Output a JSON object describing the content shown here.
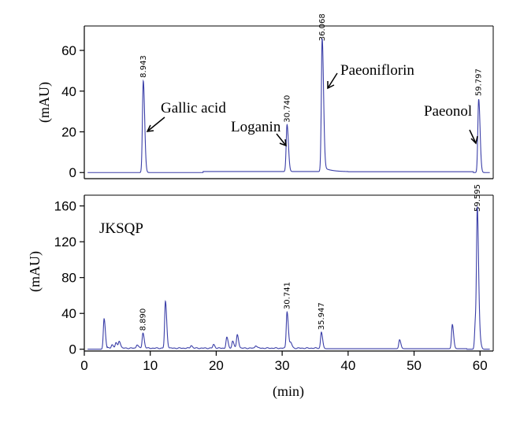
{
  "chart_data": [
    {
      "type": "line",
      "panel": "standards",
      "ylabel": "(mAU)",
      "xlim": [
        0,
        62
      ],
      "ylim": [
        -3,
        72
      ],
      "yticks": [
        0,
        20,
        40,
        60
      ],
      "baseline": 0,
      "peaks": [
        {
          "rt": 8.943,
          "height": 45,
          "label": "8.943",
          "compound": "Gallic acid"
        },
        {
          "rt": 30.74,
          "height": 23,
          "label": "30.740",
          "compound": "Loganin"
        },
        {
          "rt": 36.068,
          "height": 63,
          "label": "36.068",
          "compound": "Paeoniflorin"
        },
        {
          "rt": 59.797,
          "height": 36,
          "label": "59.797",
          "compound": "Paeonol"
        }
      ],
      "annotations": [
        {
          "text": "Gallic acid",
          "rt": 8.943
        },
        {
          "text": "Loganin",
          "rt": 30.74
        },
        {
          "text": "Paeoniflorin",
          "rt": 36.068
        },
        {
          "text": "Paeonol",
          "rt": 59.797
        }
      ]
    },
    {
      "type": "line",
      "panel": "sample",
      "sample_label": "JKSQP",
      "ylabel": "(mAU)",
      "xlabel": "(min)",
      "xlim": [
        0,
        62
      ],
      "ylim": [
        -2,
        172
      ],
      "yticks": [
        0,
        40,
        80,
        120,
        160
      ],
      "xticks": [
        0,
        10,
        20,
        30,
        40,
        50,
        60
      ],
      "peaks": [
        {
          "rt": 3.0,
          "height": 34
        },
        {
          "rt": 4.2,
          "height": 4
        },
        {
          "rt": 4.8,
          "height": 6
        },
        {
          "rt": 5.3,
          "height": 8
        },
        {
          "rt": 8.0,
          "height": 4
        },
        {
          "rt": 8.89,
          "height": 17,
          "label": "8.890"
        },
        {
          "rt": 12.3,
          "height": 52
        },
        {
          "rt": 16.2,
          "height": 3
        },
        {
          "rt": 19.6,
          "height": 4
        },
        {
          "rt": 21.6,
          "height": 12
        },
        {
          "rt": 22.5,
          "height": 8
        },
        {
          "rt": 23.2,
          "height": 15
        },
        {
          "rt": 26.0,
          "height": 3
        },
        {
          "rt": 30.741,
          "height": 41,
          "label": "30.741"
        },
        {
          "rt": 31.3,
          "height": 6
        },
        {
          "rt": 35.947,
          "height": 18,
          "label": "35.947"
        },
        {
          "rt": 47.8,
          "height": 10
        },
        {
          "rt": 55.8,
          "height": 27
        },
        {
          "rt": 59.3,
          "height": 30
        },
        {
          "rt": 59.595,
          "height": 150,
          "label": "59.595"
        },
        {
          "rt": 60.0,
          "height": 8
        }
      ]
    }
  ]
}
